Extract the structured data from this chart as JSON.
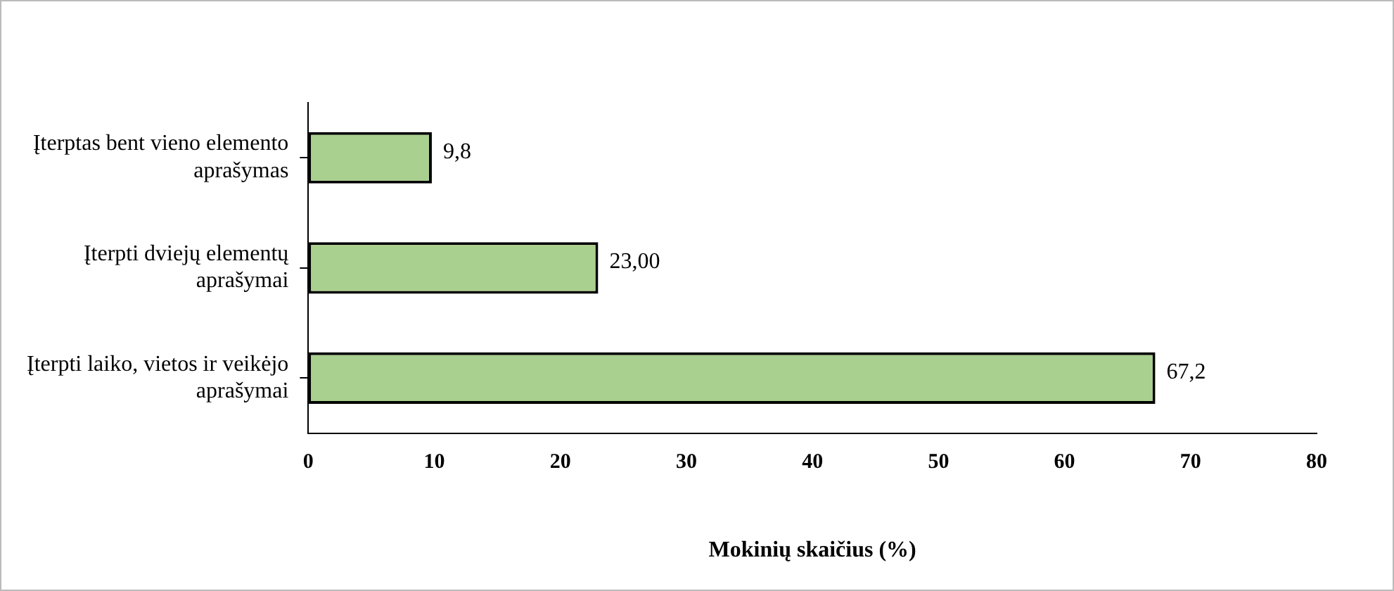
{
  "chart_data": {
    "type": "bar",
    "orientation": "horizontal",
    "xlabel": "Mokinių skaičius (%)",
    "categories": [
      "Įterptas bent vieno elemento aprašymas",
      "Įterpti dviejų elementų aprašymai",
      "Įterpti laiko, vietos ir veikėjo aprašymai"
    ],
    "values": [
      9.8,
      23.0,
      67.2
    ],
    "value_labels": [
      "9,8",
      "23,00",
      "67,2"
    ],
    "color": "#a9d08e",
    "xlim": [
      0,
      80
    ],
    "xticks": [
      0,
      10,
      20,
      30,
      40,
      50,
      60,
      70,
      80
    ],
    "grid": false,
    "legend": false
  }
}
